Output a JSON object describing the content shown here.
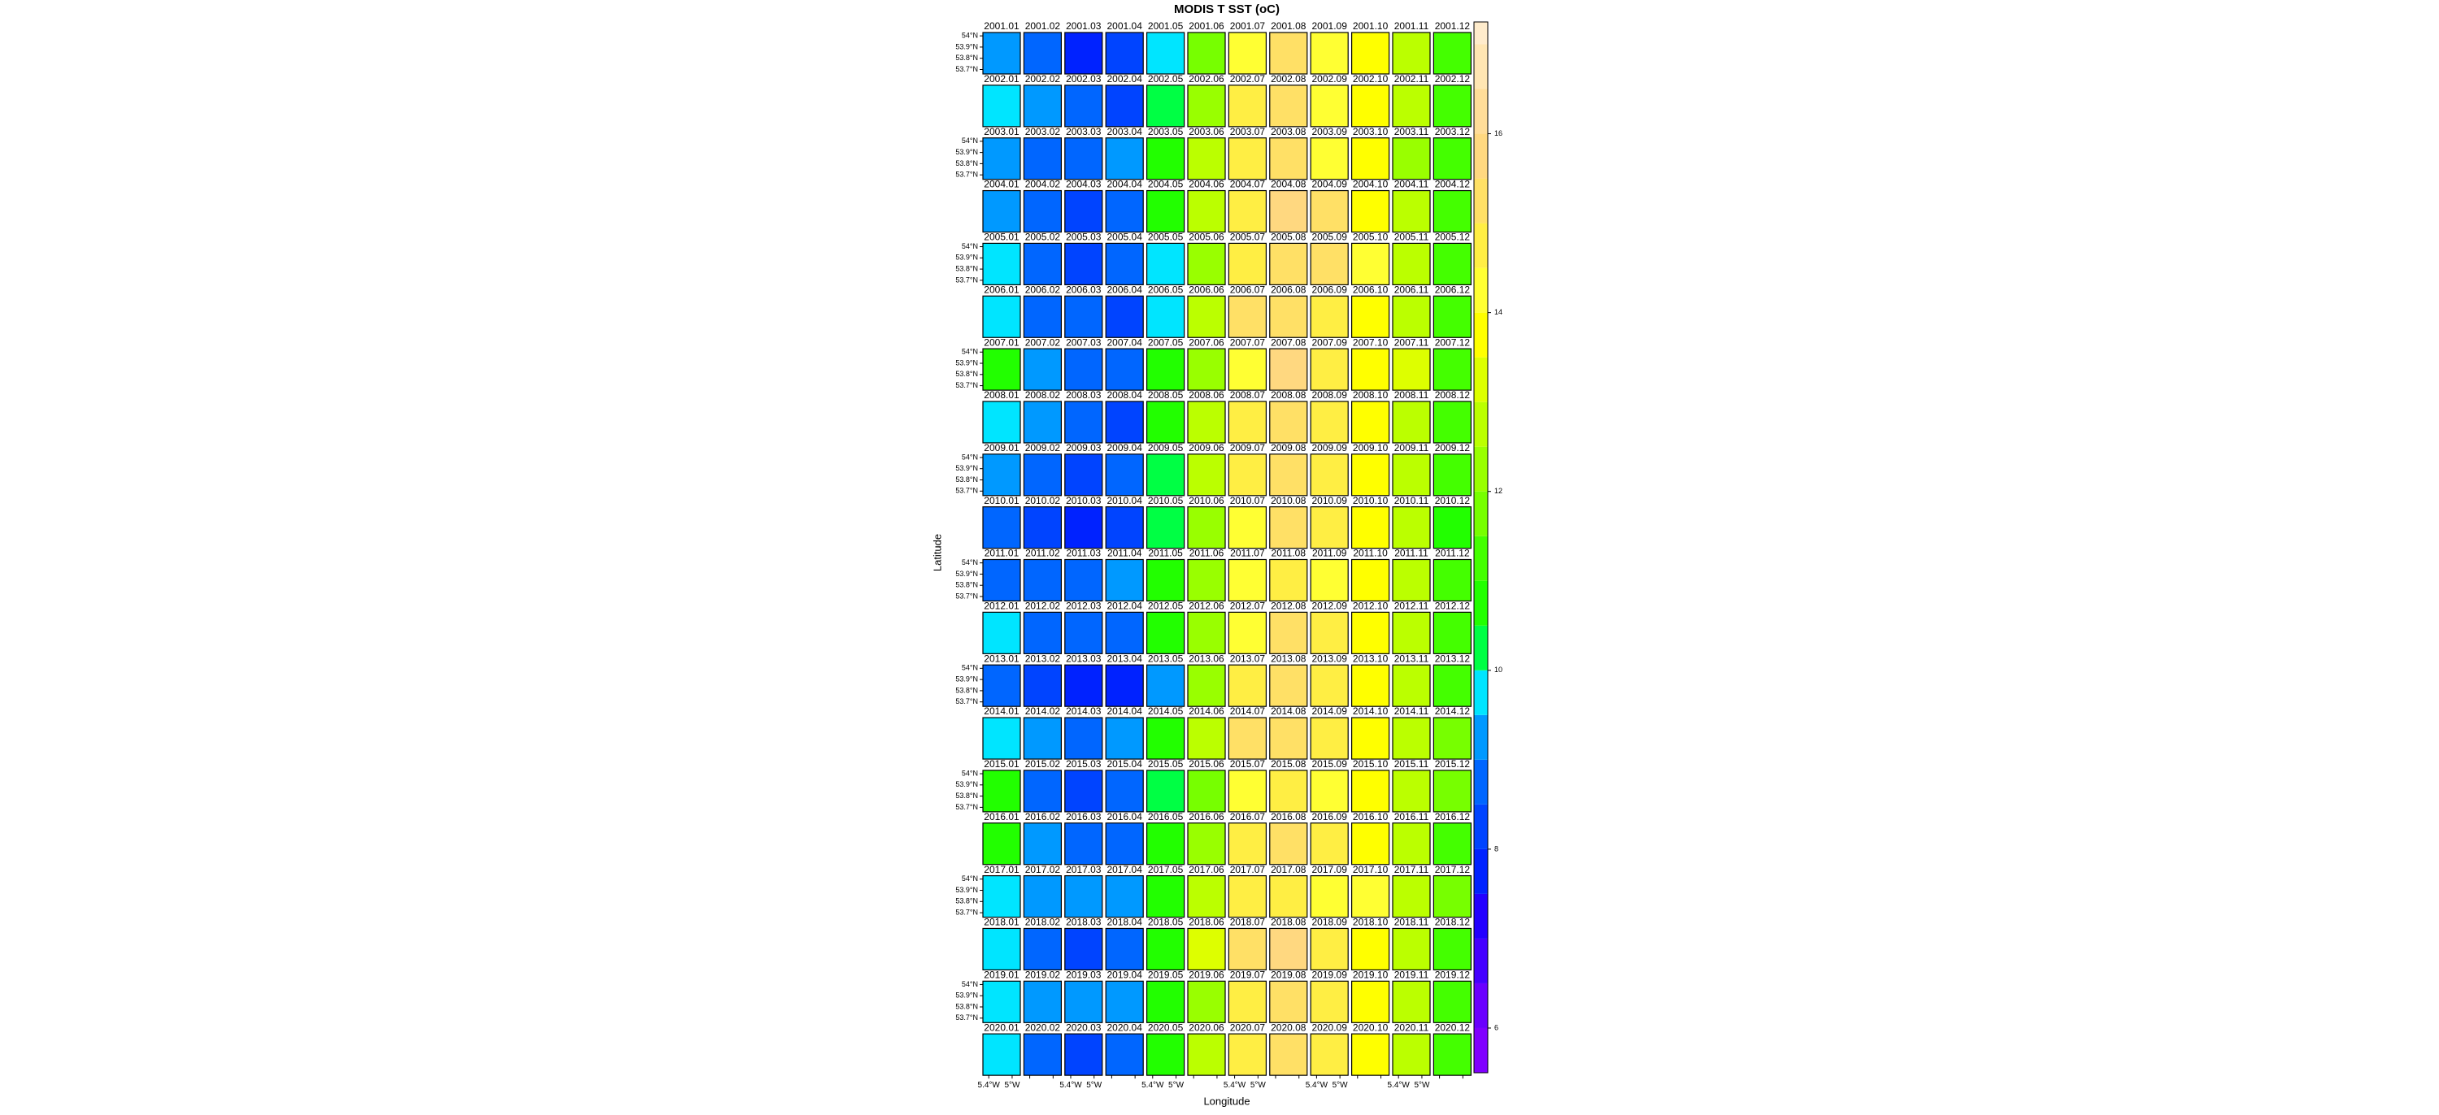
{
  "chart_data": {
    "type": "levelplot",
    "title": "MODIS T SST (oC)",
    "xlabel": "Longitude",
    "ylabel": "Latitude",
    "xlim": [
      -5.5,
      -4.86
    ],
    "ylim": [
      53.66,
      54.03
    ],
    "xticks": [
      {
        "value": -5.4,
        "label": "5.4°W"
      },
      {
        "value": -5,
        "label": "5°W"
      }
    ],
    "yticks": [
      {
        "value": 54,
        "label": "54°N"
      },
      {
        "value": 53.9,
        "label": "53.9°N"
      },
      {
        "value": 53.8,
        "label": "53.8°N"
      },
      {
        "value": 53.7,
        "label": "53.7°N"
      }
    ],
    "colorbar": {
      "lim": [
        5.5,
        17.25
      ],
      "ticks": [
        6,
        8,
        10,
        12,
        14,
        16
      ],
      "breaks": [
        5.5,
        6,
        6.5,
        7,
        7.5,
        8,
        8.5,
        9,
        9.5,
        10,
        10.5,
        11,
        11.5,
        12,
        12.5,
        13,
        13.5,
        14,
        14.5,
        15,
        15.5,
        16,
        16.5,
        17,
        17.25
      ],
      "colors": [
        "#8000ff",
        "#6a00ff",
        "#4400ff",
        "#2200ff",
        "#0022ff",
        "#0044ff",
        "#0066ff",
        "#0099ff",
        "#00e5ff",
        "#00ff44",
        "#22ff00",
        "#44ff00",
        "#77ff00",
        "#99ff00",
        "#bbff00",
        "#ddff00",
        "#ffff00",
        "#ffff33",
        "#ffee44",
        "#ffe066",
        "#ffd880",
        "#ffdd99",
        "#ffe6b3",
        "#ffeccc"
      ]
    },
    "rows": [
      {
        "labels": [
          "2001.01",
          "2001.02",
          "2001.03",
          "2001.04",
          "2001.05",
          "2001.06",
          "2001.07",
          "2001.08",
          "2001.09",
          "2001.10",
          "2001.11",
          "2001.12"
        ],
        "values": [
          9.2,
          8.6,
          7.8,
          8.1,
          9.8,
          11.8,
          14.0,
          15.4,
          14.3,
          13.8,
          12.8,
          11.3
        ]
      },
      {
        "labels": [
          "2002.01",
          "2002.02",
          "2002.03",
          "2002.04",
          "2002.05",
          "2002.06",
          "2002.07",
          "2002.08",
          "2002.09",
          "2002.10",
          "2002.11",
          "2002.12"
        ],
        "values": [
          9.7,
          9.0,
          8.8,
          8.4,
          10.2,
          12.1,
          14.6,
          15.2,
          14.4,
          13.9,
          12.9,
          11.2
        ]
      },
      {
        "labels": [
          "2003.01",
          "2003.02",
          "2003.03",
          "2003.04",
          "2003.05",
          "2003.06",
          "2003.07",
          "2003.08",
          "2003.09",
          "2003.10",
          "2003.11",
          "2003.12"
        ],
        "values": [
          9.2,
          8.7,
          8.6,
          9.0,
          10.8,
          12.6,
          14.8,
          15.3,
          14.2,
          13.7,
          12.4,
          11.0
        ]
      },
      {
        "labels": [
          "2004.01",
          "2004.02",
          "2004.03",
          "2004.04",
          "2004.05",
          "2004.06",
          "2004.07",
          "2004.08",
          "2004.09",
          "2004.10",
          "2004.11",
          "2004.12"
        ],
        "values": [
          9.0,
          8.8,
          8.3,
          8.5,
          10.5,
          12.8,
          14.9,
          15.6,
          15.1,
          13.9,
          12.7,
          11.4
        ]
      },
      {
        "labels": [
          "2005.01",
          "2005.02",
          "2005.03",
          "2005.04",
          "2005.05",
          "2005.06",
          "2005.07",
          "2005.08",
          "2005.09",
          "2005.10",
          "2005.11",
          "2005.12"
        ],
        "values": [
          9.7,
          8.5,
          8.3,
          8.8,
          9.9,
          12.4,
          14.9,
          15.4,
          15.0,
          14.1,
          12.6,
          11.2
        ]
      },
      {
        "labels": [
          "2006.01",
          "2006.02",
          "2006.03",
          "2006.04",
          "2006.05",
          "2006.06",
          "2006.07",
          "2006.08",
          "2006.09",
          "2006.10",
          "2006.11",
          "2006.12"
        ],
        "values": [
          9.6,
          8.8,
          8.6,
          8.2,
          9.8,
          12.6,
          15.0,
          15.3,
          14.8,
          13.9,
          12.6,
          11.3
        ]
      },
      {
        "labels": [
          "2007.01",
          "2007.02",
          "2007.03",
          "2007.04",
          "2007.05",
          "2007.06",
          "2007.07",
          "2007.08",
          "2007.09",
          "2007.10",
          "2007.11",
          "2007.12"
        ],
        "values": [
          10.9,
          9.3,
          8.7,
          8.9,
          10.8,
          12.4,
          14.3,
          15.8,
          14.8,
          13.9,
          13.2,
          11.0
        ]
      },
      {
        "labels": [
          "2008.01",
          "2008.02",
          "2008.03",
          "2008.04",
          "2008.05",
          "2008.06",
          "2008.07",
          "2008.08",
          "2008.09",
          "2008.10",
          "2008.11",
          "2008.12"
        ],
        "values": [
          9.7,
          9.0,
          8.5,
          8.4,
          10.6,
          12.7,
          14.8,
          15.0,
          14.6,
          13.8,
          12.6,
          11.2
        ]
      },
      {
        "labels": [
          "2009.01",
          "2009.02",
          "2009.03",
          "2009.04",
          "2009.05",
          "2009.06",
          "2009.07",
          "2009.08",
          "2009.09",
          "2009.10",
          "2009.11",
          "2009.12"
        ],
        "values": [
          9.0,
          8.6,
          8.0,
          8.5,
          10.1,
          12.5,
          14.9,
          15.3,
          14.6,
          13.8,
          12.6,
          11.4
        ]
      },
      {
        "labels": [
          "2010.01",
          "2010.02",
          "2010.03",
          "2010.04",
          "2010.05",
          "2010.06",
          "2010.07",
          "2010.08",
          "2010.09",
          "2010.10",
          "2010.11",
          "2010.12"
        ],
        "values": [
          8.8,
          8.0,
          7.9,
          8.2,
          10.4,
          12.3,
          14.2,
          15.0,
          14.7,
          13.8,
          12.8,
          10.8
        ]
      },
      {
        "labels": [
          "2011.01",
          "2011.02",
          "2011.03",
          "2011.04",
          "2011.05",
          "2011.06",
          "2011.07",
          "2011.08",
          "2011.09",
          "2011.10",
          "2011.11",
          "2011.12"
        ],
        "values": [
          8.9,
          8.6,
          8.6,
          9.4,
          10.9,
          12.4,
          14.1,
          14.6,
          14.4,
          13.9,
          12.9,
          11.4
        ]
      },
      {
        "labels": [
          "2012.01",
          "2012.02",
          "2012.03",
          "2012.04",
          "2012.05",
          "2012.06",
          "2012.07",
          "2012.08",
          "2012.09",
          "2012.10",
          "2012.11",
          "2012.12"
        ],
        "values": [
          9.5,
          8.6,
          8.7,
          8.8,
          10.8,
          12.2,
          14.4,
          15.2,
          14.5,
          13.9,
          12.5,
          11.2
        ]
      },
      {
        "labels": [
          "2013.01",
          "2013.02",
          "2013.03",
          "2013.04",
          "2013.05",
          "2013.06",
          "2013.07",
          "2013.08",
          "2013.09",
          "2013.10",
          "2013.11",
          "2013.12"
        ],
        "values": [
          8.9,
          8.3,
          7.8,
          7.9,
          9.2,
          12.0,
          14.5,
          15.1,
          14.5,
          13.9,
          12.6,
          11.2
        ]
      },
      {
        "labels": [
          "2014.01",
          "2014.02",
          "2014.03",
          "2014.04",
          "2014.05",
          "2014.06",
          "2014.07",
          "2014.08",
          "2014.09",
          "2014.10",
          "2014.11",
          "2014.12"
        ],
        "values": [
          9.7,
          9.0,
          8.8,
          9.3,
          10.7,
          12.5,
          15.0,
          15.4,
          14.7,
          13.9,
          12.9,
          11.6
        ]
      },
      {
        "labels": [
          "2015.01",
          "2015.02",
          "2015.03",
          "2015.04",
          "2015.05",
          "2015.06",
          "2015.07",
          "2015.08",
          "2015.09",
          "2015.10",
          "2015.11",
          "2015.12"
        ],
        "values": [
          10.5,
          8.7,
          8.1,
          8.7,
          10.1,
          11.9,
          14.3,
          14.8,
          14.4,
          13.8,
          12.8,
          11.5
        ]
      },
      {
        "labels": [
          "2016.01",
          "2016.02",
          "2016.03",
          "2016.04",
          "2016.05",
          "2016.06",
          "2016.07",
          "2016.08",
          "2016.09",
          "2016.10",
          "2016.11",
          "2016.12"
        ],
        "values": [
          10.9,
          9.1,
          8.8,
          8.9,
          10.6,
          12.4,
          14.9,
          15.2,
          14.9,
          13.9,
          12.8,
          11.3
        ]
      },
      {
        "labels": [
          "2017.01",
          "2017.02",
          "2017.03",
          "2017.04",
          "2017.05",
          "2017.06",
          "2017.07",
          "2017.08",
          "2017.09",
          "2017.10",
          "2017.11",
          "2017.12"
        ],
        "values": [
          9.7,
          9.2,
          9.1,
          9.2,
          10.7,
          12.6,
          14.6,
          14.9,
          14.3,
          14.0,
          12.9,
          11.6
        ]
      },
      {
        "labels": [
          "2018.01",
          "2018.02",
          "2018.03",
          "2018.04",
          "2018.05",
          "2018.06",
          "2018.07",
          "2018.08",
          "2018.09",
          "2018.10",
          "2018.11",
          "2018.12"
        ],
        "values": [
          9.8,
          8.6,
          8.0,
          8.7,
          10.6,
          13.0,
          15.3,
          15.5,
          14.7,
          13.9,
          12.7,
          11.3
        ]
      },
      {
        "labels": [
          "2019.01",
          "2019.02",
          "2019.03",
          "2019.04",
          "2019.05",
          "2019.06",
          "2019.07",
          "2019.08",
          "2019.09",
          "2019.10",
          "2019.11",
          "2019.12"
        ],
        "values": [
          9.8,
          9.1,
          9.0,
          9.3,
          10.5,
          12.3,
          14.8,
          15.2,
          14.6,
          13.8,
          12.9,
          11.4
        ]
      },
      {
        "labels": [
          "2020.01",
          "2020.02",
          "2020.03",
          "2020.04",
          "2020.05",
          "2020.06",
          "2020.07",
          "2020.08",
          "2020.09",
          "2020.10",
          "2020.11",
          "2020.12"
        ],
        "values": [
          9.8,
          8.8,
          8.4,
          8.6,
          10.8,
          12.7,
          14.8,
          15.0,
          14.6,
          13.9,
          12.8,
          11.3
        ]
      }
    ]
  }
}
